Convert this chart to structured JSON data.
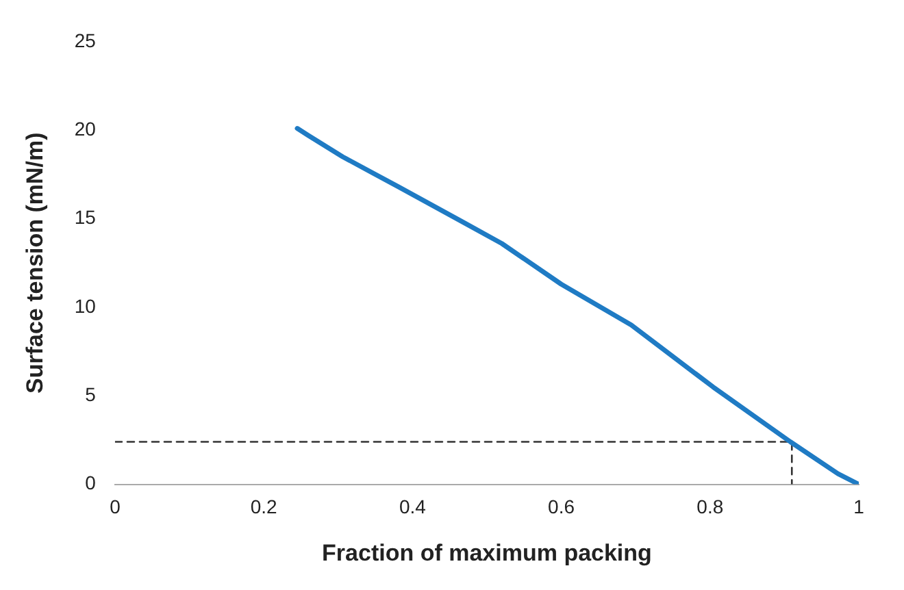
{
  "chart_data": {
    "type": "line",
    "xlabel": "Fraction of maximum packing",
    "ylabel": "Surface tension (mN/m)",
    "xlim": [
      0,
      1
    ],
    "xticks": [
      0,
      0.2,
      0.4,
      0.6,
      0.8,
      1
    ],
    "ylim": [
      0,
      25
    ],
    "yticks": [
      0,
      5,
      10,
      15,
      20,
      25
    ],
    "grid": false,
    "legend": false,
    "marker": "none",
    "series": [
      {
        "color": "#1f7bc4",
        "x": [
          0.245,
          0.26,
          0.306,
          0.381,
          0.468,
          0.52,
          0.6,
          0.694,
          0.804,
          0.908,
          0.972,
          1
        ],
        "values": [
          20.1,
          19.7,
          18.5,
          16.8,
          14.8,
          13.6,
          11.3,
          9.0,
          5.5,
          2.4,
          0.6,
          0
        ]
      },
      {
        "color": "#333333",
        "line_style": "dashed",
        "x": [
          0,
          0.91,
          0.91
        ],
        "values": [
          2.4,
          2.4,
          0
        ]
      }
    ]
  }
}
